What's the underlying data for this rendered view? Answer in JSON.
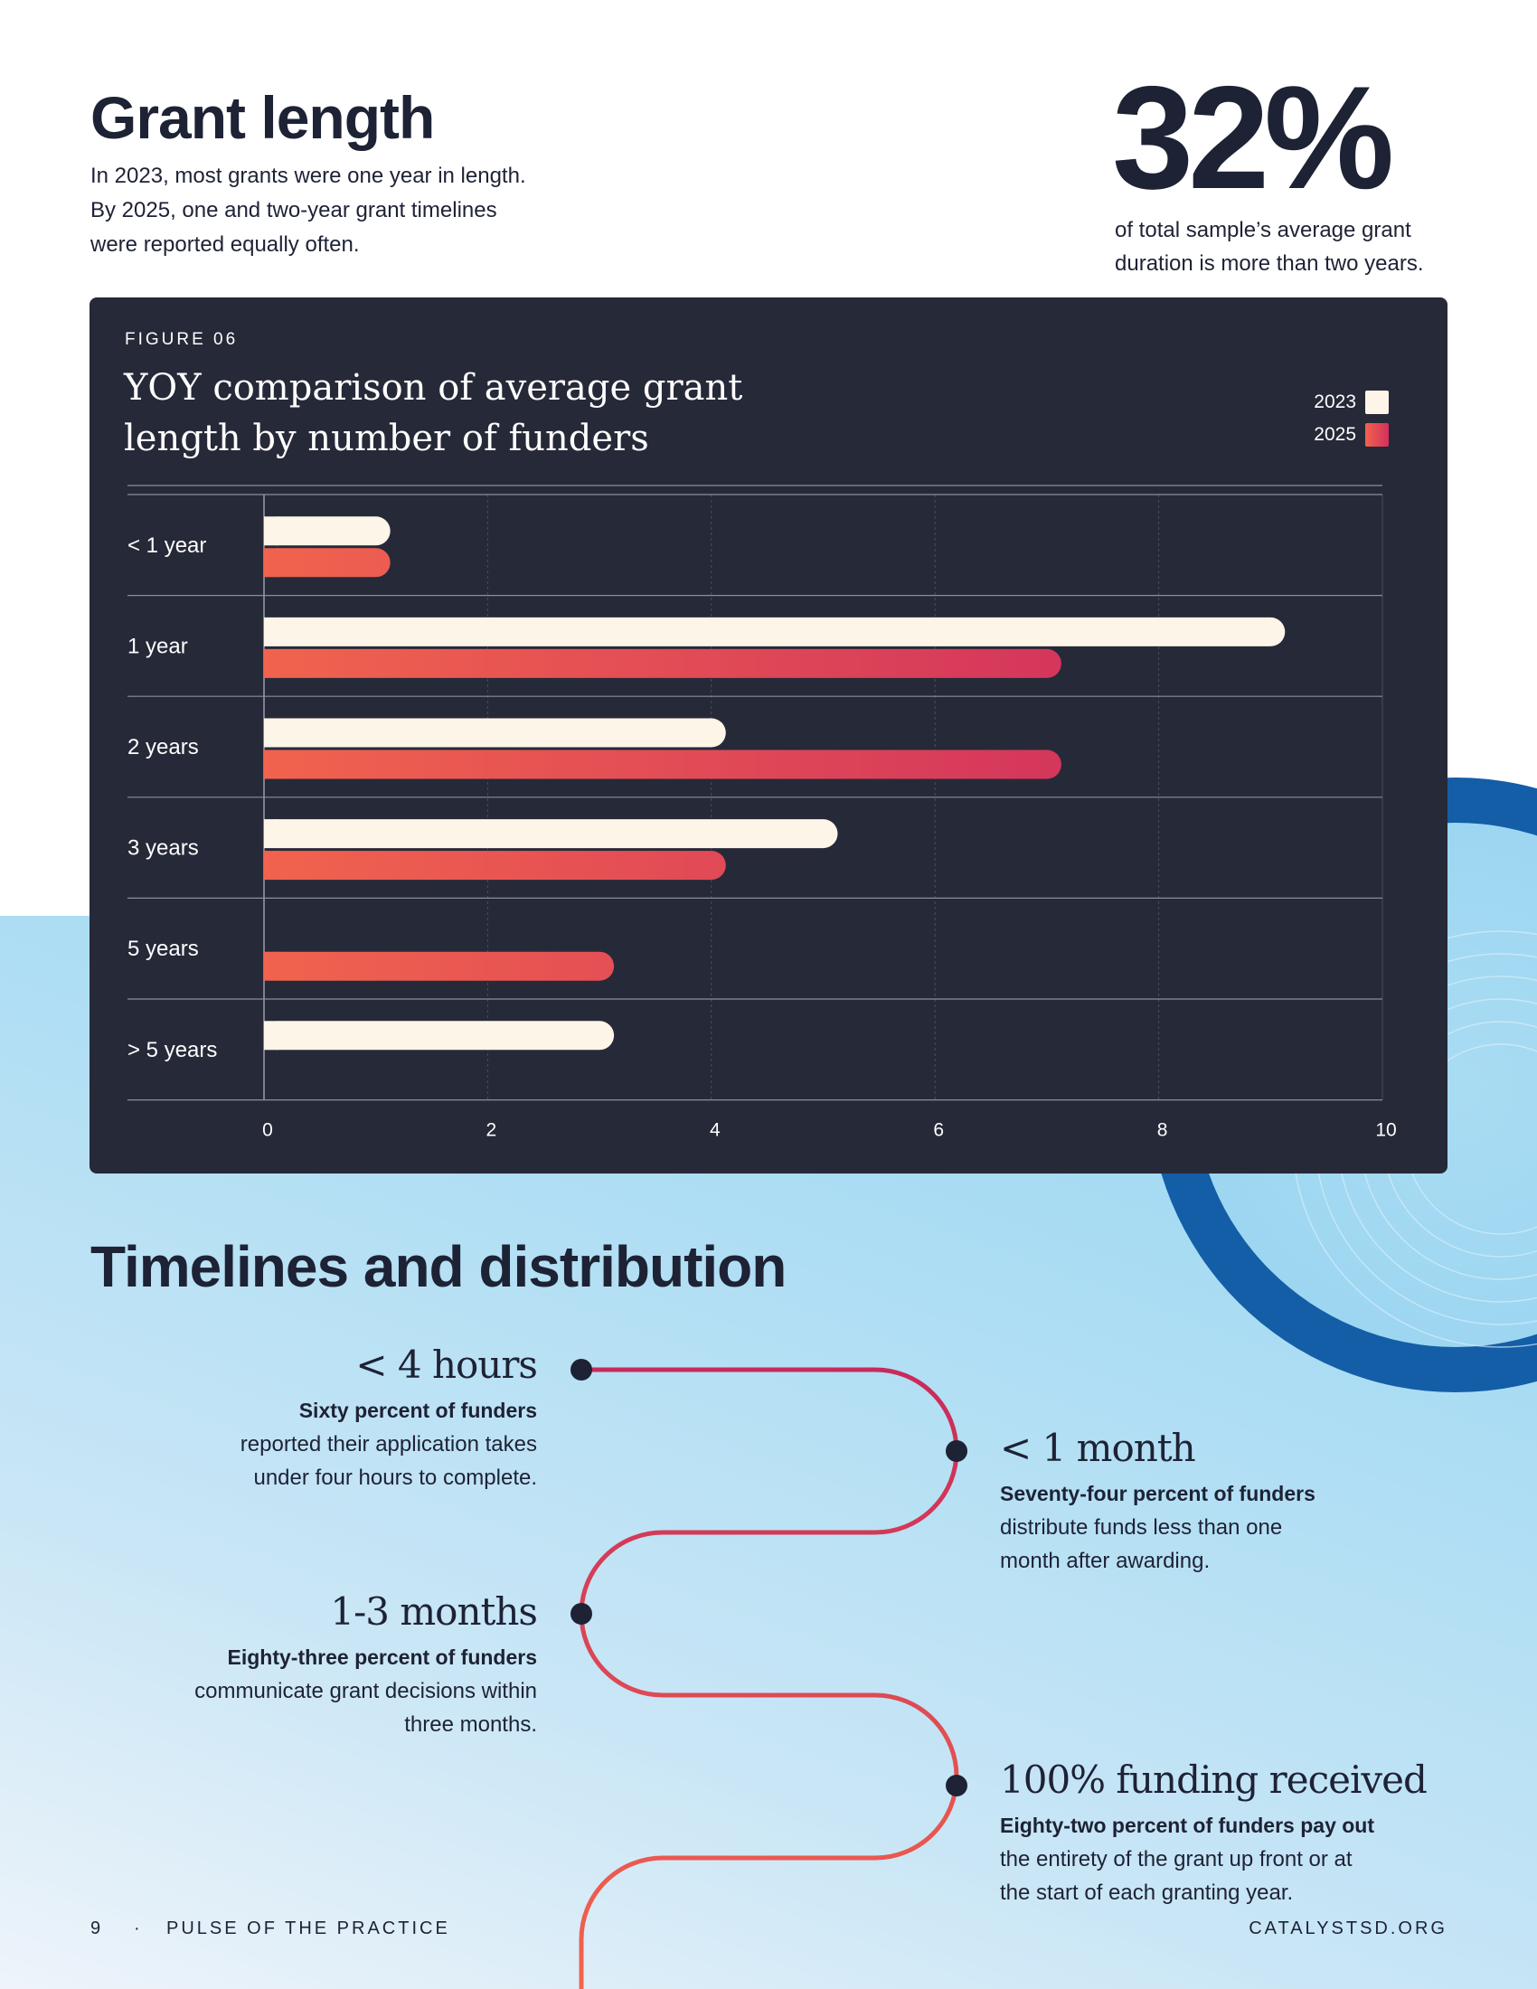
{
  "header": {
    "title": "Grant length",
    "intro_lines": [
      "In 2023, most grants were one year in length.",
      "By 2025, one and two-year grant timelines",
      "were reported equally often."
    ]
  },
  "stat": {
    "value": "32%",
    "caption_lines": [
      "of total sample’s average grant",
      "duration is more than two years."
    ]
  },
  "figure": {
    "label": "FIGURE 06",
    "title_lines": [
      "YOY comparison of average grant",
      "length by number of funders"
    ]
  },
  "chart_data": {
    "type": "bar",
    "orientation": "horizontal",
    "title": "YOY comparison of average grant length by number of funders",
    "categories": [
      "< 1 year",
      "1 year",
      "2 years",
      "3 years",
      "5 years",
      "> 5 years"
    ],
    "series": [
      {
        "name": "2023",
        "values": [
          1,
          9,
          4,
          5,
          0,
          3
        ],
        "color": "#fdf5e8"
      },
      {
        "name": "2025",
        "values": [
          1,
          7,
          7,
          4,
          3,
          0
        ],
        "color_start": "#f1634e",
        "color_end": "#d42f5e"
      }
    ],
    "xticks": [
      "0",
      "2",
      "4",
      "6",
      "8",
      "10"
    ],
    "xlim": [
      0,
      10
    ],
    "grid": true,
    "legend_position": "top-right"
  },
  "timeline": {
    "title": "Timelines and distribution",
    "milestones": [
      {
        "heading": "< 4 hours",
        "bold": "Sixty percent of funders",
        "lines": [
          "reported their application takes",
          "under four hours to complete."
        ]
      },
      {
        "heading": "< 1 month",
        "bold": "Seventy-four percent of funders",
        "lines": [
          "distribute funds less than one",
          "month after awarding."
        ]
      },
      {
        "heading": "1-3 months",
        "bold": "Eighty-three percent of funders",
        "lines": [
          "communicate grant decisions within",
          "three months."
        ]
      },
      {
        "heading": "100% funding received",
        "bold": "Eighty-two percent of funders pay out",
        "lines": [
          "the entirety of the grant up front or at",
          "the start of each granting year."
        ]
      }
    ]
  },
  "footer": {
    "page_number": "9",
    "separator": "·",
    "publication": "PULSE OF THE PRACTICE",
    "website": "CATALYSTSD.ORG"
  },
  "colors": {
    "navy": "#1e2235",
    "card": "#262938",
    "cream": "#fdf5e8",
    "coral": "#f1634e",
    "crimson": "#d42f5e",
    "ring_blue": "#145da7",
    "sky": "#a9dcf3"
  }
}
